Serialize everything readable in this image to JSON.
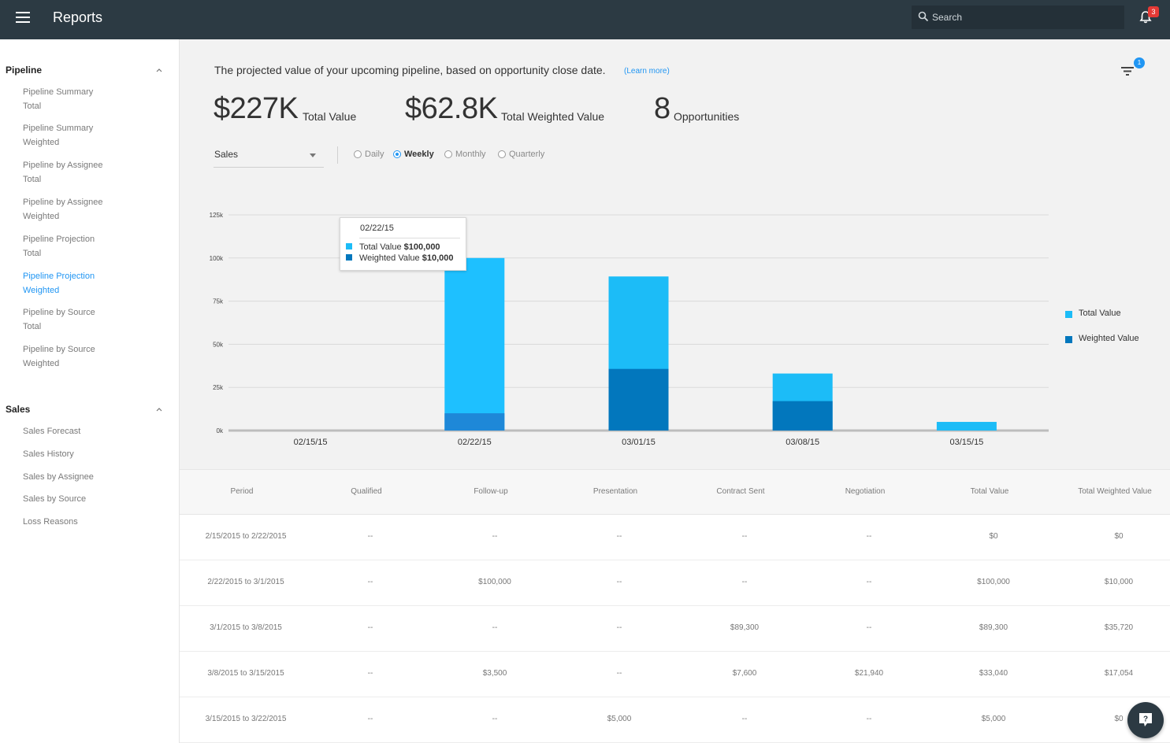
{
  "header": {
    "title": "Reports",
    "search_placeholder": "Search",
    "notification_count": "3"
  },
  "sidebar": {
    "sections": [
      {
        "title": "Pipeline",
        "items": [
          {
            "line1": "Pipeline Summary",
            "line2": "Total"
          },
          {
            "line1": "Pipeline Summary",
            "line2": "Weighted"
          },
          {
            "line1": "Pipeline by Assignee",
            "line2": "Total"
          },
          {
            "line1": "Pipeline by Assignee",
            "line2": "Weighted"
          },
          {
            "line1": "Pipeline Projection",
            "line2": "Total"
          },
          {
            "line1": "Pipeline Projection",
            "line2": "Weighted",
            "active": true
          },
          {
            "line1": "Pipeline by Source",
            "line2": "Total"
          },
          {
            "line1": "Pipeline by Source",
            "line2": "Weighted"
          }
        ]
      },
      {
        "title": "Sales",
        "items": [
          {
            "line1": "Sales Forecast"
          },
          {
            "line1": "Sales History"
          },
          {
            "line1": "Sales by Assignee"
          },
          {
            "line1": "Sales by Source"
          },
          {
            "line1": "Loss Reasons"
          }
        ]
      }
    ]
  },
  "main": {
    "description": "The projected value of your upcoming pipeline, based on opportunity close date.",
    "learn_more": "(Learn more)",
    "filter_count": "1",
    "kpis": [
      {
        "value": "$227K",
        "label": "Total Value"
      },
      {
        "value": "$62.8K",
        "label": "Total Weighted Value"
      },
      {
        "value": "8",
        "label": "Opportunities"
      }
    ],
    "pipeline_select": "Sales",
    "periods": [
      {
        "label": "Daily",
        "checked": false
      },
      {
        "label": "Weekly",
        "checked": true
      },
      {
        "label": "Monthly",
        "checked": false
      },
      {
        "label": "Quarterly",
        "checked": false
      }
    ],
    "tooltip": {
      "date": "02/22/15",
      "total_label": "Total Value",
      "total_value": "$100,000",
      "weighted_label": "Weighted Value",
      "weighted_value": "$10,000"
    }
  },
  "chart_data": {
    "type": "bar",
    "categories": [
      "02/15/15",
      "02/22/15",
      "03/01/15",
      "03/08/15",
      "03/15/15"
    ],
    "series": [
      {
        "name": "Total Value",
        "values": [
          0,
          100000,
          89300,
          33040,
          5000
        ],
        "color": "#1cbcf7"
      },
      {
        "name": "Weighted Value",
        "values": [
          0,
          10000,
          35720,
          17054,
          0
        ],
        "color": "#0277bd"
      }
    ],
    "ylim": [
      0,
      125000
    ],
    "yticks": [
      0,
      25000,
      50000,
      75000,
      100000,
      125000
    ],
    "ytick_labels": [
      "0k",
      "25k",
      "50k",
      "75k",
      "100k",
      "125k"
    ],
    "grid": true,
    "legend_position": "right",
    "highlight_index": 1,
    "highlight_color": "#1ec0ff",
    "weighted_highlight_color": "#1e88d8"
  },
  "table": {
    "headers": [
      "Period",
      "Qualified",
      "Follow-up",
      "Presentation",
      "Contract Sent",
      "Negotiation",
      "Total Value",
      "Total Weighted Value"
    ],
    "rows": [
      [
        "2/15/2015 to 2/22/2015",
        "--",
        "--",
        "--",
        "--",
        "--",
        "$0",
        "$0"
      ],
      [
        "2/22/2015 to 3/1/2015",
        "--",
        "$100,000",
        "--",
        "--",
        "--",
        "$100,000",
        "$10,000"
      ],
      [
        "3/1/2015 to 3/8/2015",
        "--",
        "--",
        "--",
        "$89,300",
        "--",
        "$89,300",
        "$35,720"
      ],
      [
        "3/8/2015 to 3/15/2015",
        "--",
        "$3,500",
        "--",
        "$7,600",
        "$21,940",
        "$33,040",
        "$17,054"
      ],
      [
        "3/15/2015 to 3/22/2015",
        "--",
        "--",
        "$5,000",
        "--",
        "--",
        "$5,000",
        "$0"
      ]
    ]
  }
}
